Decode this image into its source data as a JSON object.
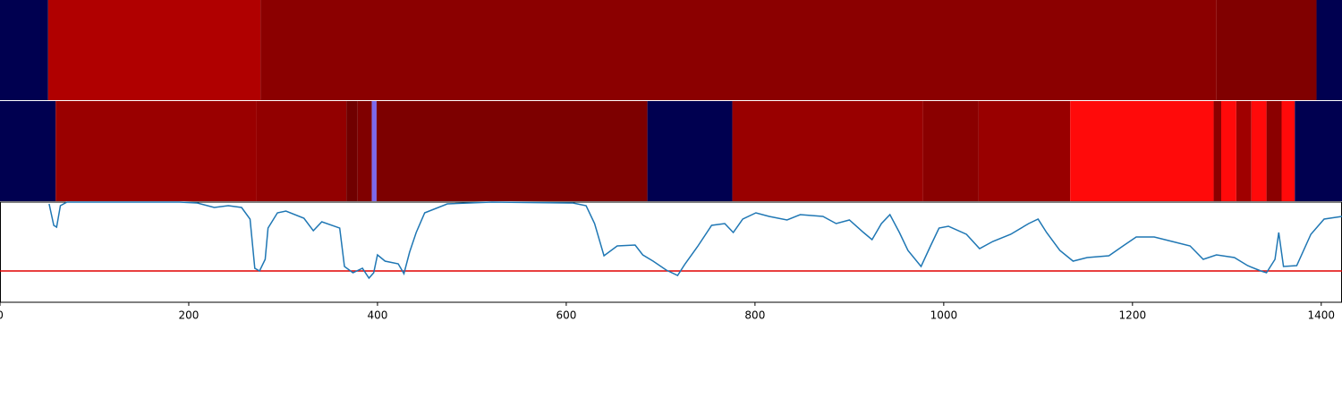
{
  "chart_data": {
    "type": "line",
    "xlim": [
      0,
      1422
    ],
    "ylim": [
      0,
      112
    ],
    "xticks": [
      0,
      200,
      400,
      600,
      800,
      1000,
      1200,
      1400
    ],
    "strips": [
      {
        "segments": [
          {
            "start": 0,
            "end": 51,
            "color": "#000050"
          },
          {
            "start": 51,
            "end": 276,
            "color": "#b00000"
          },
          {
            "start": 276,
            "end": 1289,
            "color": "#8b0000"
          },
          {
            "start": 1289,
            "end": 1395,
            "color": "#800000"
          },
          {
            "start": 1395,
            "end": 1422,
            "color": "#000050"
          }
        ]
      },
      {
        "segments": [
          {
            "start": 0,
            "end": 59,
            "color": "#000050"
          },
          {
            "start": 59,
            "end": 272,
            "color": "#9a0000"
          },
          {
            "start": 272,
            "end": 367,
            "color": "#920000"
          },
          {
            "start": 367,
            "end": 379,
            "color": "#700000"
          },
          {
            "start": 379,
            "end": 394,
            "color": "#800000"
          },
          {
            "start": 394,
            "end": 399,
            "color": "#7b68ee"
          },
          {
            "start": 399,
            "end": 686,
            "color": "#7d0000"
          },
          {
            "start": 686,
            "end": 776,
            "color": "#000050"
          },
          {
            "start": 776,
            "end": 978,
            "color": "#990000"
          },
          {
            "start": 978,
            "end": 1037,
            "color": "#8a0000"
          },
          {
            "start": 1037,
            "end": 1134,
            "color": "#990000"
          },
          {
            "start": 1134,
            "end": 1286,
            "color": "#ff0a0a"
          },
          {
            "start": 1286,
            "end": 1294,
            "color": "#8b0000"
          },
          {
            "start": 1294,
            "end": 1310,
            "color": "#ff0a0a"
          },
          {
            "start": 1310,
            "end": 1326,
            "color": "#a00000"
          },
          {
            "start": 1326,
            "end": 1342,
            "color": "#ff0a0a"
          },
          {
            "start": 1342,
            "end": 1358,
            "color": "#8b0000"
          },
          {
            "start": 1358,
            "end": 1372,
            "color": "#ff0a0a"
          },
          {
            "start": 1372,
            "end": 1422,
            "color": "#000050"
          }
        ]
      }
    ],
    "threshold": 35,
    "threshold_color": "#e00000",
    "x": [
      52,
      57,
      60,
      64,
      71,
      190,
      209,
      227,
      242,
      256,
      265,
      270,
      275,
      281,
      284,
      294,
      303,
      322,
      332,
      341,
      360,
      365,
      374,
      384,
      391,
      396,
      400,
      408,
      422,
      428,
      434,
      441,
      450,
      474,
      521,
      607,
      621,
      630,
      640,
      654,
      673,
      681,
      692,
      706,
      718,
      726,
      739,
      754,
      768,
      777,
      787,
      801,
      815,
      834,
      848,
      872,
      886,
      900,
      915,
      924,
      934,
      943,
      953,
      962,
      976,
      986,
      995,
      1005,
      1024,
      1038,
      1052,
      1071,
      1090,
      1100,
      1109,
      1123,
      1137,
      1152,
      1175,
      1190,
      1204,
      1223,
      1242,
      1261,
      1275,
      1289,
      1308,
      1322,
      1336,
      1342,
      1351,
      1355,
      1360,
      1374,
      1389,
      1403,
      1422
    ],
    "series": [
      {
        "color": "#1f77b4",
        "values": [
          110,
          86,
          84,
          108,
          112,
          112,
          111,
          106,
          108,
          106,
          93,
          38,
          35,
          48,
          83,
          100,
          102,
          94,
          80,
          90,
          83,
          40,
          33,
          38,
          27,
          33,
          53,
          46,
          43,
          32,
          56,
          78,
          100,
          110,
          112,
          111,
          108,
          88,
          52,
          63,
          64,
          53,
          46,
          36,
          30,
          43,
          62,
          86,
          88,
          78,
          93,
          100,
          96,
          92,
          98,
          96,
          88,
          92,
          78,
          70,
          88,
          98,
          78,
          58,
          40,
          63,
          83,
          85,
          76,
          60,
          68,
          76,
          88,
          93,
          78,
          58,
          46,
          50,
          52,
          63,
          73,
          73,
          68,
          63,
          48,
          53,
          50,
          41,
          35,
          33,
          48,
          78,
          40,
          41,
          76,
          93,
          96
        ]
      }
    ]
  }
}
